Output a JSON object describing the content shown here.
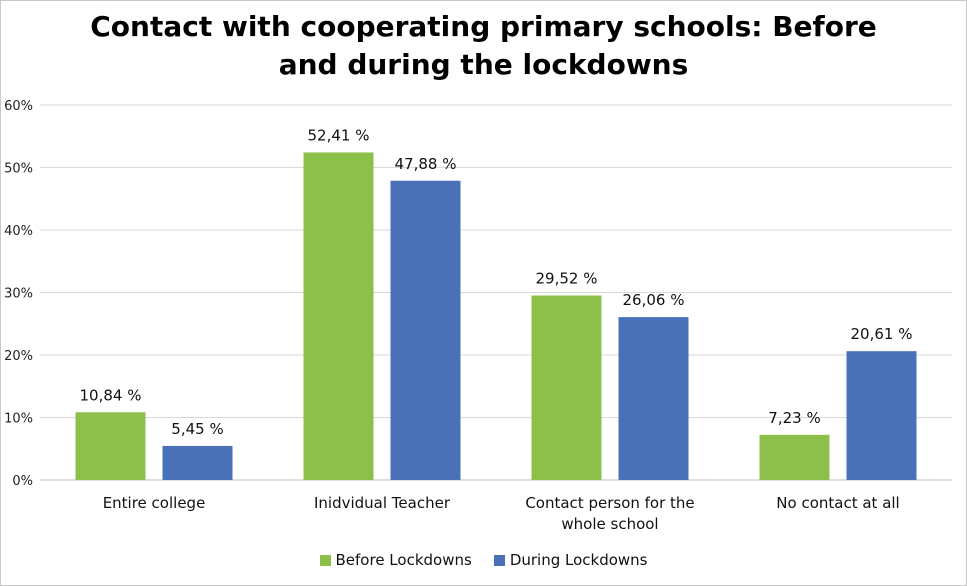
{
  "chart_data": {
    "type": "bar",
    "title_lines": [
      "Contact with cooperating primary schools: Before",
      "and during the lockdowns"
    ],
    "categories": [
      [
        "Entire college"
      ],
      [
        "Inidvidual Teacher"
      ],
      [
        "Contact person for the",
        "whole school"
      ],
      [
        "No contact at all"
      ]
    ],
    "series": [
      {
        "name": "Before Lockdowns",
        "color": "#8dc04b",
        "values": [
          10.84,
          52.41,
          29.52,
          7.23
        ],
        "labels": [
          "10,84 %",
          "52,41 %",
          "29,52 %",
          "7,23 %"
        ]
      },
      {
        "name": "During Lockdowns",
        "color": "#4a71b7",
        "values": [
          5.45,
          47.88,
          26.06,
          20.61
        ],
        "labels": [
          "5,45 %",
          "47,88 %",
          "26,06 %",
          "20,61 %"
        ]
      }
    ],
    "ylim": [
      0,
      60
    ],
    "yticks": [
      0,
      10,
      20,
      30,
      40,
      50,
      60
    ],
    "ytick_labels": [
      "0%",
      "10%",
      "20%",
      "30%",
      "40%",
      "50%",
      "60%"
    ],
    "grid": true,
    "legend_position": "bottom"
  }
}
